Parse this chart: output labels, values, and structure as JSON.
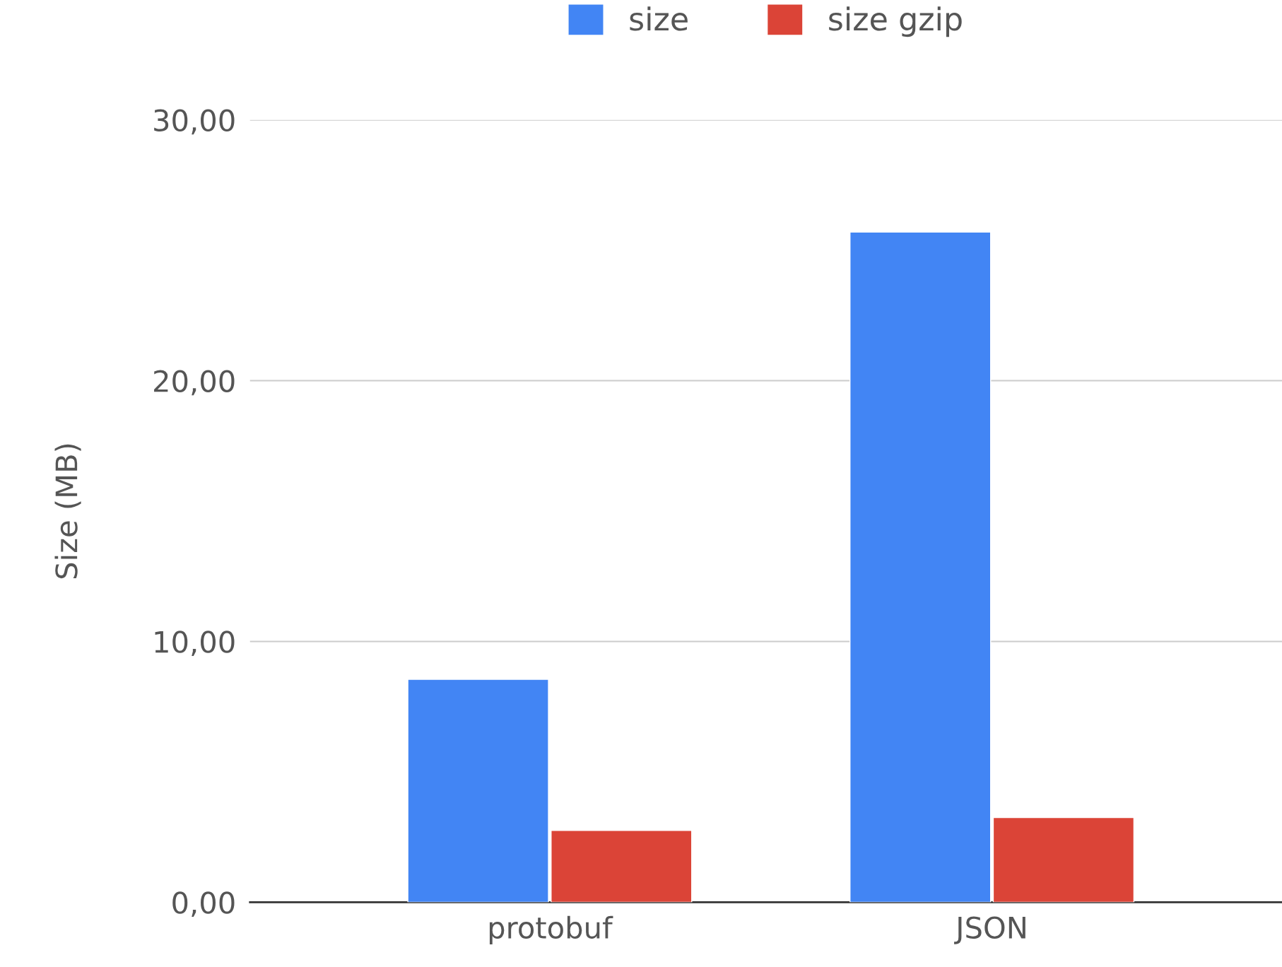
{
  "chart_data": {
    "type": "bar",
    "ylabel": "Size (MB)",
    "categories": [
      "protobuf",
      "JSON"
    ],
    "series": [
      {
        "name": "size",
        "color": "#4285f4",
        "values": [
          8.55,
          25.7
        ]
      },
      {
        "name": "size gzip",
        "color": "#db4437",
        "values": [
          2.75,
          3.25
        ]
      }
    ],
    "ylim": [
      0,
      30
    ],
    "yticks": [
      {
        "value": 0,
        "label": "0,00"
      },
      {
        "value": 10,
        "label": "10,00"
      },
      {
        "value": 20,
        "label": "20,00"
      },
      {
        "value": 30,
        "label": "30,00"
      }
    ],
    "grid": "y",
    "legend": "top"
  }
}
